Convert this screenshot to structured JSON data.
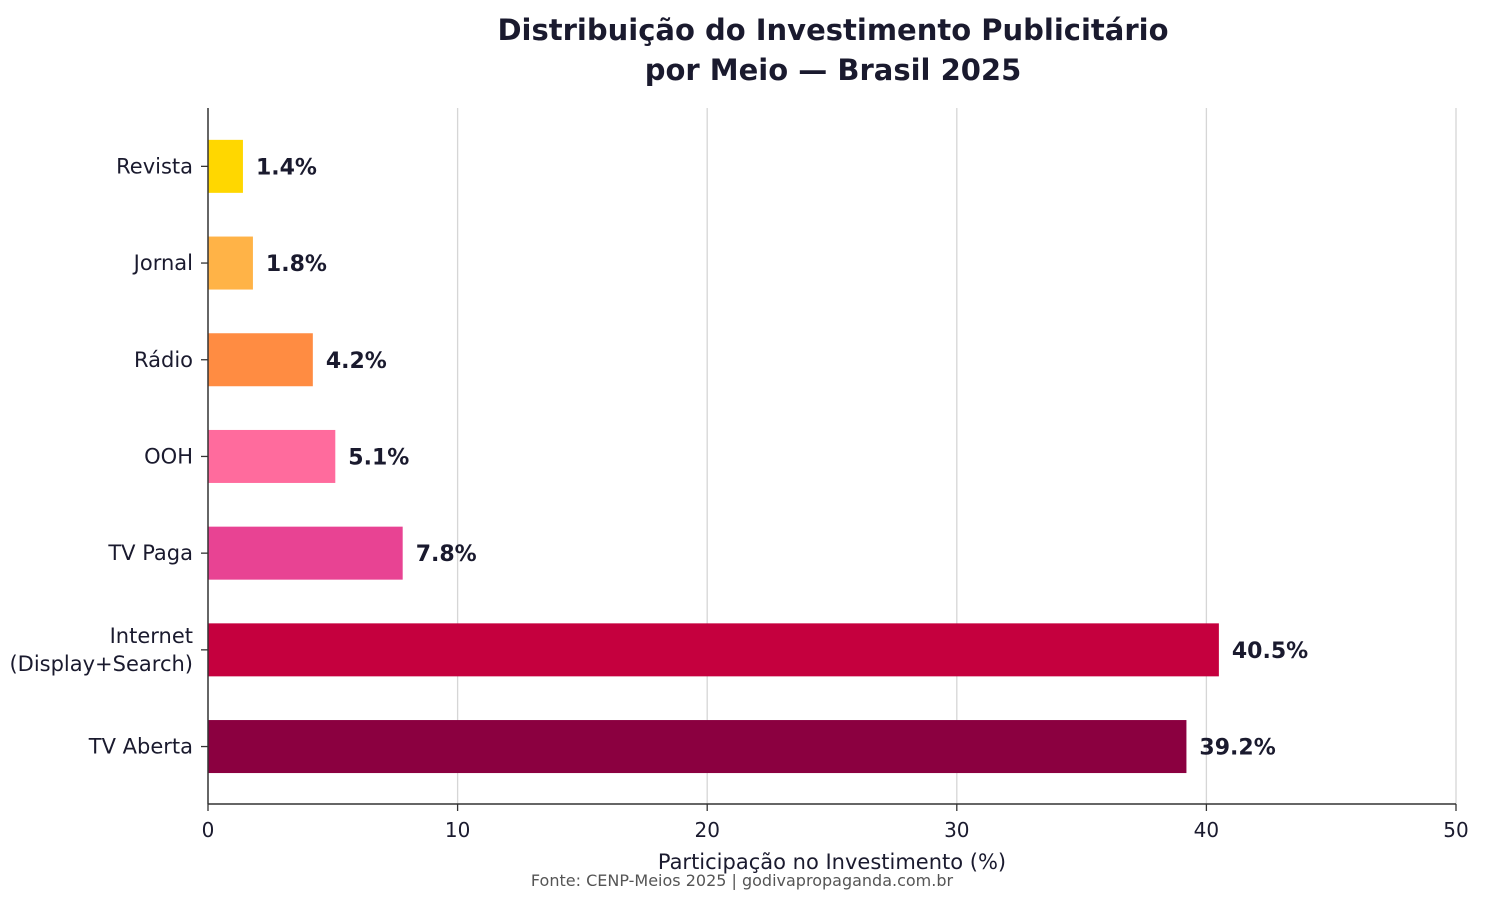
{
  "chart_data": {
    "type": "bar",
    "orientation": "horizontal",
    "title": "Distribuição do Investimento Publicitário\npor Meio — Brasil 2025",
    "xlabel": "Participação no Investimento (%)",
    "ylabel": "",
    "xlim": [
      0,
      50
    ],
    "xticks": [
      0,
      10,
      20,
      30,
      40,
      50
    ],
    "grid": "vertical",
    "categories": [
      "Revista",
      "Jornal",
      "Rádio",
      "OOH",
      "TV Paga",
      "Internet\n(Display+Search)",
      "TV Aberta"
    ],
    "values": [
      1.4,
      1.8,
      4.2,
      5.1,
      7.8,
      40.5,
      39.2
    ],
    "value_labels": [
      "1.4%",
      "1.8%",
      "4.2%",
      "5.1%",
      "7.8%",
      "40.5%",
      "39.2%"
    ],
    "colors": [
      "#FFD700",
      "#FFB347",
      "#FF8C42",
      "#FF6B9D",
      "#E84393",
      "#C5003E",
      "#8B0040"
    ],
    "source": "Fonte: CENP-Meios 2025 | godivapropaganda.com.br"
  }
}
